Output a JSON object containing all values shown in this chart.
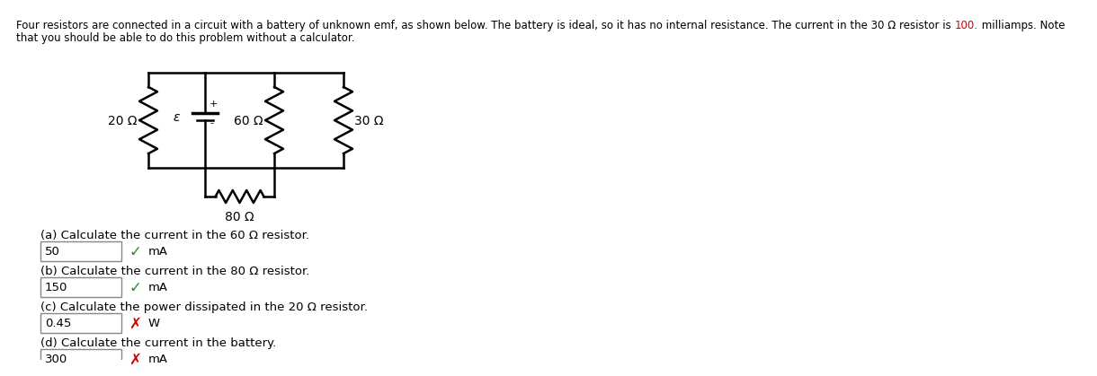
{
  "background_color": "#ffffff",
  "text_color": "#000000",
  "highlight_color": "#cc0000",
  "header_line1_before": "Four resistors are connected in a circuit with a battery of unknown emf, as shown below. The battery is ideal, so it has no internal resistance. The current in the 30 Ω resistor is ",
  "header_highlight": "100.",
  "header_line1_after": " milliamps. Note",
  "header_line2": "that you should be able to do this problem without a calculator.",
  "circuit": {
    "r20_label": "20 Ω",
    "r60_label": "60 Ω",
    "r30_label": "30 Ω",
    "r80_label": "80 Ω",
    "battery_label": "ε",
    "plus_label": "+"
  },
  "questions": [
    {
      "label": "(a) Calculate the current in the 60 Ω resistor.",
      "answer": "50",
      "unit": "mA",
      "correct": true
    },
    {
      "label": "(b) Calculate the current in the 80 Ω resistor.",
      "answer": "150",
      "unit": "mA",
      "correct": true
    },
    {
      "label": "(c) Calculate the power dissipated in the 20 Ω resistor.",
      "answer": "0.45",
      "unit": "W",
      "correct": false
    },
    {
      "label": "(d) Calculate the current in the battery.",
      "answer": "300",
      "unit": "mA",
      "correct": false
    }
  ],
  "check_color": "#228B22",
  "cross_color": "#cc0000",
  "font_size_header": 8.5,
  "font_size_question": 9.5,
  "font_size_answer": 9.5,
  "font_size_circuit": 10
}
